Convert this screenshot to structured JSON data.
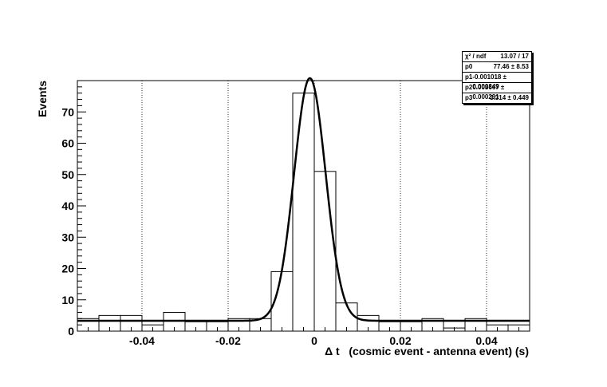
{
  "chart_data": {
    "type": "histogram",
    "xlabel": "Δ t   (cosmic event - antenna event) (s)",
    "ylabel": "Events",
    "xlim": [
      -0.055,
      0.05
    ],
    "ylim": [
      0,
      80
    ],
    "x_ticks": [
      -0.04,
      -0.02,
      0,
      0.02,
      0.04
    ],
    "x_tick_labels": [
      "-0.04",
      "-0.02",
      "0",
      "0.02",
      "0.04"
    ],
    "y_ticks": [
      0,
      10,
      20,
      30,
      40,
      50,
      60,
      70
    ],
    "y_tick_labels": [
      "0",
      "10",
      "20",
      "30",
      "40",
      "50",
      "60",
      "70"
    ],
    "grid": "vertical dotted",
    "bin_width": 0.005,
    "bins": [
      {
        "x0": -0.055,
        "value": 4
      },
      {
        "x0": -0.05,
        "value": 5
      },
      {
        "x0": -0.045,
        "value": 5
      },
      {
        "x0": -0.04,
        "value": 2
      },
      {
        "x0": -0.035,
        "value": 6
      },
      {
        "x0": -0.03,
        "value": 3
      },
      {
        "x0": -0.025,
        "value": 3
      },
      {
        "x0": -0.02,
        "value": 4
      },
      {
        "x0": -0.015,
        "value": 4
      },
      {
        "x0": -0.01,
        "value": 19
      },
      {
        "x0": -0.005,
        "value": 76
      },
      {
        "x0": 0.0,
        "value": 51
      },
      {
        "x0": 0.005,
        "value": 9
      },
      {
        "x0": 0.01,
        "value": 5
      },
      {
        "x0": 0.015,
        "value": 3
      },
      {
        "x0": 0.02,
        "value": 3
      },
      {
        "x0": 0.025,
        "value": 4
      },
      {
        "x0": 0.03,
        "value": 1
      },
      {
        "x0": 0.035,
        "value": 4
      },
      {
        "x0": 0.04,
        "value": 2
      },
      {
        "x0": 0.045,
        "value": 2
      }
    ],
    "fit": {
      "function": "gaussian_plus_constant",
      "p0": 77.46,
      "p1": -0.001018,
      "p2": 0.003667,
      "p3": 3.314
    },
    "stats_box": {
      "placement": "top-right",
      "rows": [
        {
          "label": "χ² / ndf",
          "value": "13.07 / 17"
        },
        {
          "label": "p0",
          "value": "77.46 ± 8.53"
        },
        {
          "label": "p1",
          "value": "-0.001018 ± 0.000349"
        },
        {
          "label": "p2",
          "value": "0.003667 ± 0.000291"
        },
        {
          "label": "p3",
          "value": "3.314 ± 0.449"
        }
      ]
    }
  }
}
